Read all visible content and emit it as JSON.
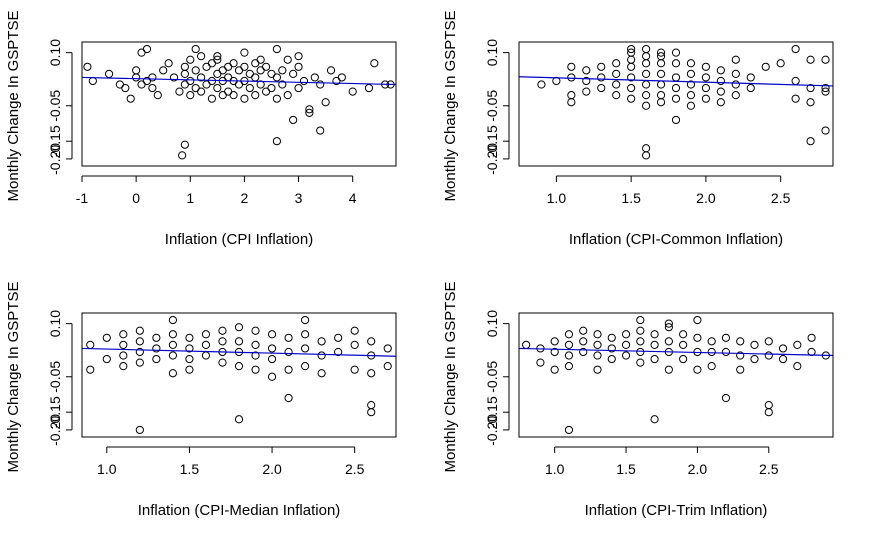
{
  "chart_data": [
    {
      "type": "scatter",
      "xlabel": "Inflation (CPI Inflation)",
      "ylabel": "Monthly Change In GSPTSE",
      "xlim": [
        -1,
        4.8
      ],
      "ylim": [
        -0.22,
        0.13
      ],
      "xticks": [
        "-1",
        "0",
        "1",
        "2",
        "3",
        "4"
      ],
      "yticks": [
        "-0.20",
        "-0.15",
        "-0.05",
        "0.10"
      ],
      "ytick_values": [
        -0.2,
        -0.15,
        -0.05,
        0.1
      ],
      "trend_line": {
        "color": "#0000cc",
        "x": [
          -1,
          4.8
        ],
        "y": [
          0.03,
          0.01
        ]
      },
      "points": {
        "x": [
          -0.9,
          -0.8,
          -0.5,
          -0.3,
          -0.2,
          -0.1,
          0.0,
          0.0,
          0.1,
          0.1,
          0.2,
          0.3,
          0.3,
          0.4,
          0.5,
          0.6,
          0.7,
          0.8,
          0.9,
          0.9,
          0.9,
          1.0,
          1.0,
          1.0,
          1.1,
          1.1,
          1.2,
          1.2,
          1.2,
          1.3,
          1.3,
          1.4,
          1.4,
          1.4,
          1.5,
          1.5,
          1.5,
          1.6,
          1.6,
          1.6,
          1.7,
          1.7,
          1.7,
          1.8,
          1.8,
          1.8,
          1.9,
          1.9,
          2.0,
          2.0,
          2.0,
          2.1,
          2.1,
          2.2,
          2.2,
          2.2,
          2.3,
          2.3,
          2.4,
          2.4,
          2.5,
          2.5,
          2.6,
          2.6,
          2.6,
          2.7,
          2.7,
          2.8,
          2.8,
          2.9,
          3.0,
          3.0,
          3.1,
          3.2,
          3.3,
          3.4,
          3.5,
          3.6,
          3.7,
          3.8,
          4.0,
          4.3,
          4.4,
          4.6,
          4.7,
          0.9,
          0.85,
          2.6,
          2.9,
          3.2,
          3.4,
          0.2,
          1.1,
          2.0,
          1.5,
          2.3,
          3.0
        ],
        "y": [
          0.06,
          0.02,
          0.04,
          0.01,
          0.0,
          -0.03,
          0.03,
          0.05,
          0.1,
          0.01,
          0.02,
          0.0,
          0.03,
          -0.02,
          0.05,
          0.07,
          0.03,
          -0.01,
          0.04,
          0.06,
          0.01,
          0.08,
          0.02,
          -0.02,
          0.05,
          0.0,
          0.09,
          0.03,
          -0.01,
          0.06,
          0.01,
          0.07,
          0.02,
          -0.03,
          0.08,
          0.04,
          0.0,
          0.05,
          0.02,
          -0.02,
          0.06,
          0.03,
          -0.01,
          0.07,
          0.02,
          -0.02,
          0.05,
          0.01,
          0.06,
          0.02,
          -0.03,
          0.04,
          0.0,
          0.07,
          0.03,
          -0.02,
          0.05,
          0.01,
          0.06,
          -0.01,
          0.04,
          0.0,
          0.11,
          0.03,
          -0.03,
          0.05,
          0.01,
          0.08,
          -0.02,
          0.04,
          0.06,
          0.0,
          0.02,
          -0.06,
          0.03,
          0.01,
          -0.04,
          0.05,
          0.02,
          0.03,
          -0.01,
          0.0,
          0.07,
          0.01,
          0.01,
          -0.16,
          -0.19,
          -0.15,
          -0.09,
          -0.07,
          -0.12,
          0.11,
          0.11,
          0.1,
          0.09,
          0.08,
          0.09
        ]
      }
    },
    {
      "type": "scatter",
      "xlabel": "Inflation (CPI-Common Inflation)",
      "ylabel": "Monthly Change In GSPTSE",
      "xlim": [
        0.75,
        2.85
      ],
      "ylim": [
        -0.22,
        0.13
      ],
      "xticks": [
        "1.0",
        "1.5",
        "2.0",
        "2.5"
      ],
      "xtick_values": [
        1.0,
        1.5,
        2.0,
        2.5
      ],
      "yticks": [
        "-0.20",
        "-0.15",
        "-0.05",
        "0.10"
      ],
      "ytick_values": [
        -0.2,
        -0.15,
        -0.05,
        0.1
      ],
      "trend_line": {
        "color": "#0000cc",
        "x": [
          0.75,
          2.85
        ],
        "y": [
          0.032,
          0.006
        ]
      },
      "points": {
        "x": [
          0.9,
          1.0,
          1.1,
          1.1,
          1.1,
          1.1,
          1.2,
          1.2,
          1.2,
          1.3,
          1.3,
          1.3,
          1.4,
          1.4,
          1.4,
          1.4,
          1.5,
          1.5,
          1.5,
          1.5,
          1.5,
          1.5,
          1.6,
          1.6,
          1.6,
          1.6,
          1.6,
          1.6,
          1.6,
          1.7,
          1.7,
          1.7,
          1.7,
          1.7,
          1.7,
          1.8,
          1.8,
          1.8,
          1.8,
          1.8,
          1.9,
          1.9,
          1.9,
          1.9,
          1.9,
          2.0,
          2.0,
          2.0,
          2.0,
          2.1,
          2.1,
          2.1,
          2.1,
          2.2,
          2.2,
          2.2,
          2.2,
          2.3,
          2.3,
          2.4,
          2.5,
          2.6,
          2.6,
          2.6,
          2.7,
          2.7,
          2.7,
          2.8,
          2.8,
          2.8,
          1.6,
          1.6,
          1.8,
          2.7,
          2.8,
          1.5,
          1.7
        ],
        "y": [
          0.01,
          0.02,
          0.06,
          0.03,
          -0.02,
          -0.04,
          0.05,
          0.02,
          -0.01,
          0.06,
          0.03,
          0.0,
          0.07,
          0.04,
          0.01,
          -0.02,
          0.1,
          0.06,
          0.03,
          0.0,
          -0.03,
          0.08,
          0.11,
          0.07,
          0.04,
          0.01,
          -0.02,
          -0.05,
          0.09,
          0.07,
          0.04,
          0.01,
          -0.02,
          -0.04,
          0.1,
          0.07,
          0.03,
          0.0,
          -0.03,
          -0.09,
          0.07,
          0.04,
          0.01,
          -0.02,
          -0.05,
          0.06,
          0.03,
          0.0,
          -0.03,
          0.05,
          0.02,
          -0.01,
          -0.04,
          0.08,
          0.04,
          0.01,
          -0.02,
          0.03,
          0.0,
          0.06,
          0.07,
          0.11,
          0.02,
          -0.03,
          0.08,
          0.0,
          -0.04,
          0.08,
          -0.01,
          -0.12,
          -0.17,
          -0.19,
          0.1,
          -0.15,
          0.0,
          0.11,
          0.09
        ]
      }
    },
    {
      "type": "scatter",
      "xlabel": "Inflation (CPI-Median Inflation)",
      "ylabel": "Monthly Change In GSPTSE",
      "xlim": [
        0.85,
        2.75
      ],
      "ylim": [
        -0.22,
        0.13
      ],
      "xticks": [
        "1.0",
        "1.5",
        "2.0",
        "2.5"
      ],
      "xtick_values": [
        1.0,
        1.5,
        2.0,
        2.5
      ],
      "yticks": [
        "-0.20",
        "-0.15",
        "-0.05",
        "0.10"
      ],
      "ytick_values": [
        -0.2,
        -0.15,
        -0.05,
        0.1
      ],
      "trend_line": {
        "color": "#0000cc",
        "x": [
          0.85,
          2.75
        ],
        "y": [
          0.03,
          0.008
        ]
      },
      "points": {
        "x": [
          0.9,
          0.9,
          1.0,
          1.0,
          1.1,
          1.1,
          1.1,
          1.1,
          1.2,
          1.2,
          1.2,
          1.2,
          1.3,
          1.3,
          1.3,
          1.4,
          1.4,
          1.4,
          1.4,
          1.5,
          1.5,
          1.5,
          1.5,
          1.6,
          1.6,
          1.6,
          1.7,
          1.7,
          1.7,
          1.7,
          1.8,
          1.8,
          1.8,
          1.8,
          1.9,
          1.9,
          1.9,
          1.9,
          2.0,
          2.0,
          2.0,
          2.0,
          2.1,
          2.1,
          2.1,
          2.2,
          2.2,
          2.2,
          2.3,
          2.3,
          2.3,
          2.4,
          2.4,
          2.5,
          2.5,
          2.5,
          2.6,
          2.6,
          2.6,
          2.7,
          2.7,
          1.2,
          1.8,
          2.1,
          2.6,
          2.6,
          1.4,
          2.2
        ],
        "y": [
          0.04,
          -0.03,
          0.06,
          0.0,
          0.07,
          0.04,
          0.01,
          -0.02,
          0.08,
          0.05,
          0.02,
          -0.01,
          0.06,
          0.03,
          0.0,
          0.07,
          0.04,
          0.01,
          -0.04,
          0.06,
          0.03,
          0.0,
          -0.03,
          0.07,
          0.04,
          0.01,
          0.08,
          0.05,
          0.02,
          -0.01,
          0.09,
          0.05,
          0.02,
          -0.02,
          0.08,
          0.04,
          0.01,
          -0.03,
          0.07,
          0.03,
          0.0,
          -0.05,
          0.06,
          0.02,
          -0.03,
          0.07,
          0.03,
          -0.02,
          0.05,
          0.01,
          -0.04,
          0.06,
          0.02,
          0.08,
          0.04,
          -0.03,
          0.05,
          0.01,
          -0.04,
          0.03,
          -0.02,
          -0.2,
          -0.17,
          -0.11,
          -0.13,
          -0.15,
          0.11,
          0.11
        ]
      }
    },
    {
      "type": "scatter",
      "xlabel": "Inflation (CPI-Trim Inflation)",
      "ylabel": "Monthly Change In GSPTSE",
      "xlim": [
        0.75,
        2.95
      ],
      "ylim": [
        -0.22,
        0.13
      ],
      "xticks": [
        "1.0",
        "1.5",
        "2.0",
        "2.5"
      ],
      "xtick_values": [
        1.0,
        1.5,
        2.0,
        2.5
      ],
      "yticks": [
        "-0.20",
        "-0.15",
        "-0.05",
        "0.10"
      ],
      "ytick_values": [
        -0.2,
        -0.15,
        -0.05,
        0.1
      ],
      "trend_line": {
        "color": "#0000cc",
        "x": [
          0.75,
          2.95
        ],
        "y": [
          0.03,
          0.01
        ]
      },
      "points": {
        "x": [
          0.8,
          0.9,
          0.9,
          1.0,
          1.0,
          1.0,
          1.1,
          1.1,
          1.1,
          1.1,
          1.2,
          1.2,
          1.2,
          1.3,
          1.3,
          1.3,
          1.3,
          1.4,
          1.4,
          1.4,
          1.5,
          1.5,
          1.5,
          1.6,
          1.6,
          1.6,
          1.6,
          1.7,
          1.7,
          1.7,
          1.8,
          1.8,
          1.8,
          1.8,
          1.9,
          1.9,
          1.9,
          2.0,
          2.0,
          2.0,
          2.1,
          2.1,
          2.1,
          2.2,
          2.2,
          2.3,
          2.3,
          2.3,
          2.4,
          2.4,
          2.5,
          2.5,
          2.6,
          2.6,
          2.7,
          2.7,
          2.8,
          2.8,
          2.9,
          1.1,
          1.7,
          2.2,
          2.5,
          2.5,
          1.6,
          1.8,
          2.0
        ],
        "y": [
          0.04,
          0.03,
          -0.01,
          0.05,
          0.02,
          -0.03,
          0.07,
          0.04,
          0.01,
          -0.02,
          0.08,
          0.05,
          0.02,
          0.07,
          0.04,
          0.01,
          -0.03,
          0.06,
          0.03,
          0.0,
          0.07,
          0.04,
          0.01,
          0.08,
          0.05,
          0.02,
          -0.01,
          0.07,
          0.04,
          0.0,
          0.09,
          0.05,
          0.02,
          -0.03,
          0.07,
          0.04,
          0.0,
          0.06,
          0.02,
          -0.03,
          0.05,
          0.02,
          -0.02,
          0.06,
          0.02,
          0.05,
          0.01,
          -0.03,
          0.04,
          0.0,
          0.05,
          0.01,
          0.03,
          0.0,
          0.04,
          -0.02,
          0.06,
          0.02,
          0.01,
          -0.2,
          -0.17,
          -0.11,
          -0.13,
          -0.15,
          0.11,
          0.1,
          0.11
        ]
      }
    }
  ]
}
